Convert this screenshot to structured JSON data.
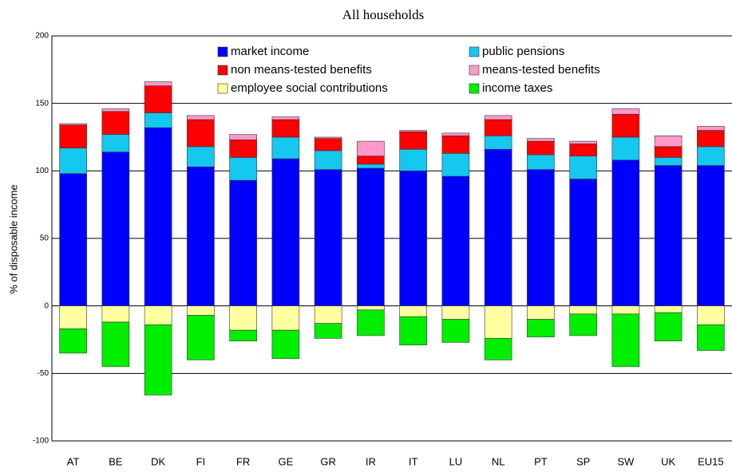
{
  "chart_data": {
    "type": "stacked_bar",
    "title": "All households",
    "y_label": "% of disposable income",
    "categories": [
      "AT",
      "BE",
      "DK",
      "FI",
      "FR",
      "GE",
      "GR",
      "IR",
      "IT",
      "LU",
      "NL",
      "PT",
      "SP",
      "SW",
      "UK",
      "EU15"
    ],
    "series": [
      {
        "name": "market income",
        "color": "#0000ff",
        "values": [
          98,
          114,
          132,
          103,
          93,
          109,
          101,
          102,
          100,
          96,
          116,
          101,
          94,
          108,
          104,
          104
        ]
      },
      {
        "name": "public pensions",
        "color": "#14c8f0",
        "values": [
          19,
          13,
          11,
          15,
          17,
          16,
          14,
          3,
          16,
          17,
          10,
          11,
          17,
          17,
          6,
          14
        ]
      },
      {
        "name": "non means-tested benefits",
        "color": "#ff0000",
        "values": [
          17,
          17,
          20,
          20,
          13,
          13,
          9,
          6,
          13,
          13,
          12,
          10,
          9,
          17,
          8,
          12
        ]
      },
      {
        "name": "means-tested benefits",
        "color": "#ff99cc",
        "values": [
          1,
          2,
          3,
          3,
          4,
          2,
          1,
          11,
          1,
          2,
          3,
          2,
          2,
          4,
          8,
          3
        ]
      },
      {
        "name": "employee social contributions",
        "color": "#ffffa0",
        "values": [
          -17,
          -12,
          -14,
          -7,
          -18,
          -18,
          -13,
          -3,
          -8,
          -10,
          -24,
          -10,
          -6,
          -6,
          -5,
          -14
        ]
      },
      {
        "name": "income taxes",
        "color": "#00ee00",
        "values": [
          -18,
          -33,
          -52,
          -33,
          -8,
          -21,
          -11,
          -19,
          -21,
          -17,
          -16,
          -13,
          -16,
          -39,
          -21,
          -19
        ]
      }
    ],
    "ylim": [
      -100,
      200
    ],
    "yticks": [
      -100,
      -50,
      0,
      50,
      100,
      150,
      200
    ],
    "grid": true
  }
}
